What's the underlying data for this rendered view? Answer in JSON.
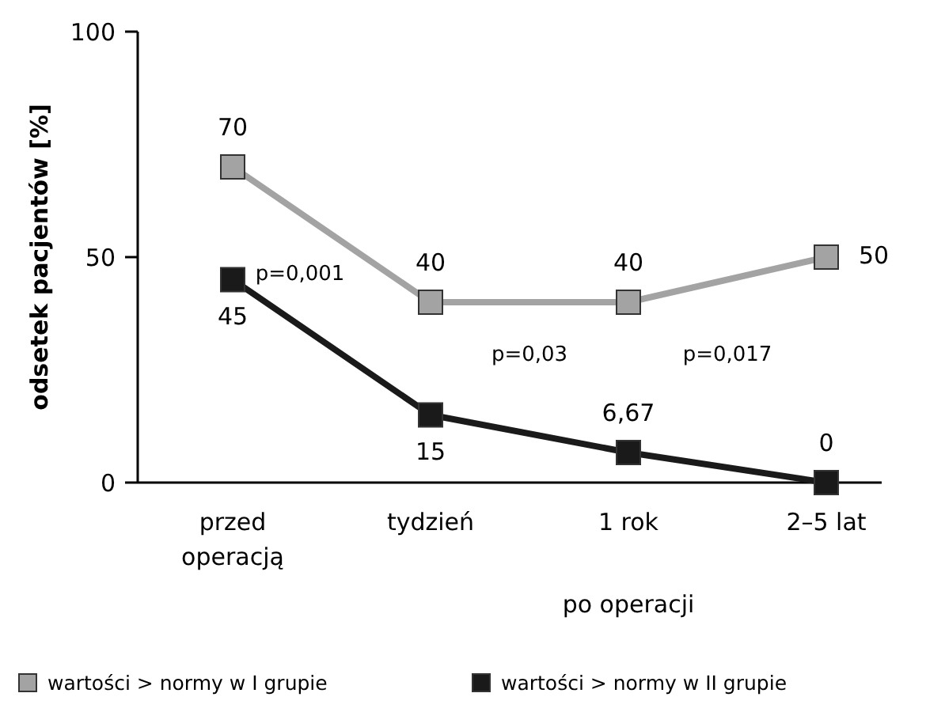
{
  "chart_data": {
    "type": "line",
    "ylabel": "odsetek pacjentów [%]",
    "xlabel": "po operacji",
    "categories": [
      "przed operacją",
      "tydzień",
      "1 rok",
      "2–5 lat"
    ],
    "ylim": [
      0,
      100
    ],
    "yticks": [
      0,
      50,
      100
    ],
    "marker": "square",
    "legend": "bottom",
    "grid": false,
    "series": [
      {
        "name": "wartości > normy w I grupie",
        "color": "#a3a3a3",
        "values": [
          70,
          40,
          40,
          50
        ],
        "value_labels": [
          "70",
          "40",
          "40",
          "50"
        ]
      },
      {
        "name": "wartości > normy w II grupie",
        "color": "#1a1a1a",
        "values": [
          45,
          15,
          6.67,
          0
        ],
        "value_labels": [
          "45",
          "15",
          "6,67",
          "0"
        ]
      }
    ],
    "annotations": [
      "p=0,001",
      "p=0,03",
      "p=0,017"
    ]
  }
}
